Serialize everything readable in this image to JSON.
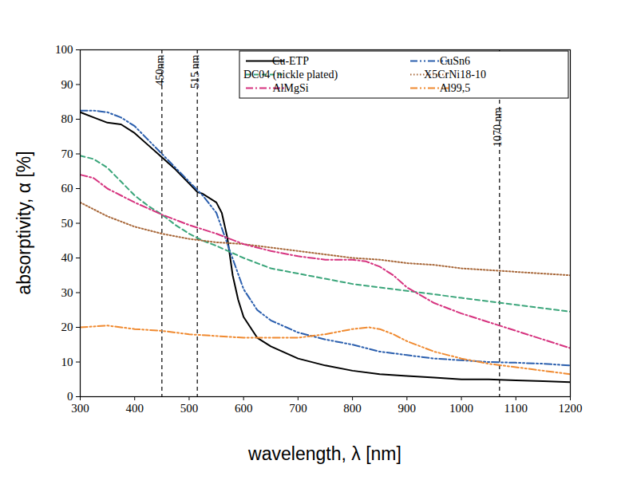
{
  "chart_data": {
    "type": "line",
    "x_label": "wavelength, λ [nm]",
    "y_label": "absorptivity, α [%]",
    "xlim": [
      300,
      1200
    ],
    "ylim": [
      0,
      100
    ],
    "xticks": [
      300,
      400,
      500,
      600,
      700,
      800,
      900,
      1000,
      1100,
      1200
    ],
    "yticks": [
      0,
      10,
      20,
      30,
      40,
      50,
      60,
      70,
      80,
      90,
      100
    ],
    "grid": false,
    "legend": "top-right",
    "series": [
      {
        "name": "Cu-ETP",
        "color": "#000000",
        "line_style": "solid",
        "x": [
          300,
          325,
          350,
          375,
          400,
          425,
          450,
          475,
          500,
          515,
          525,
          550,
          560,
          570,
          580,
          590,
          600,
          625,
          650,
          700,
          750,
          800,
          850,
          900,
          950,
          1000,
          1050,
          1100,
          1150,
          1200
        ],
        "values": [
          82,
          80.5,
          79,
          78.5,
          76,
          72.5,
          69,
          65.5,
          61.5,
          59,
          58.5,
          56,
          53,
          46,
          35,
          28,
          23,
          17,
          14.5,
          11,
          9,
          7.5,
          6.5,
          6,
          5.5,
          5,
          5,
          4.7,
          4.5,
          4.2
        ]
      },
      {
        "name": "CuSn6",
        "color": "#2b5fae",
        "line_style": "dashdotdot",
        "x": [
          300,
          325,
          350,
          375,
          400,
          425,
          450,
          475,
          500,
          525,
          550,
          575,
          600,
          625,
          650,
          700,
          750,
          800,
          850,
          900,
          950,
          1000,
          1050,
          1100,
          1150,
          1200
        ],
        "values": [
          82.5,
          82.5,
          82,
          80.5,
          78,
          74,
          70,
          66,
          62,
          58,
          53,
          42,
          31,
          25,
          22,
          18.5,
          16.5,
          15,
          13,
          12,
          11,
          10.5,
          10,
          9.8,
          9.5,
          9
        ]
      },
      {
        "name": "DC04 (nickle plated)",
        "color": "#3aa57a",
        "line_style": "dashed",
        "x": [
          300,
          325,
          350,
          375,
          400,
          425,
          450,
          475,
          500,
          525,
          550,
          600,
          650,
          700,
          750,
          800,
          850,
          900,
          950,
          1000,
          1050,
          1100,
          1150,
          1200
        ],
        "values": [
          69.5,
          68.5,
          66,
          62,
          58,
          55,
          52.5,
          49.5,
          47,
          45,
          43.5,
          40,
          37,
          35.5,
          34,
          32.5,
          31.5,
          30.5,
          29.5,
          28.5,
          27.5,
          26.5,
          25.5,
          24.5
        ]
      },
      {
        "name": "X5CrNi18-10",
        "color": "#a8683a",
        "line_style": "dotted",
        "x": [
          300,
          350,
          400,
          450,
          500,
          550,
          600,
          650,
          700,
          750,
          800,
          850,
          900,
          950,
          1000,
          1050,
          1100,
          1150,
          1200
        ],
        "values": [
          56,
          52,
          49,
          47,
          45.5,
          44.5,
          44,
          43,
          42,
          41,
          40,
          39.5,
          38.5,
          38,
          37,
          36.5,
          36,
          35.5,
          35
        ]
      },
      {
        "name": "AlMgSi",
        "color": "#d6337f",
        "line_style": "dashdot",
        "x": [
          300,
          325,
          350,
          400,
          450,
          500,
          550,
          600,
          650,
          700,
          750,
          800,
          825,
          850,
          875,
          900,
          950,
          1000,
          1050,
          1100,
          1150,
          1200
        ],
        "values": [
          64,
          63,
          60,
          56,
          52.5,
          49.5,
          47,
          44,
          42,
          40.5,
          39.5,
          39.5,
          39,
          37.5,
          35,
          31.5,
          27,
          24,
          21.5,
          19,
          16.5,
          14
        ]
      },
      {
        "name": "Al99,5",
        "color": "#f08a30",
        "line_style": "dashdotdot",
        "x": [
          300,
          350,
          400,
          450,
          500,
          550,
          600,
          650,
          700,
          750,
          800,
          830,
          850,
          875,
          900,
          950,
          1000,
          1050,
          1100,
          1150,
          1200
        ],
        "values": [
          20,
          20.5,
          19.5,
          19,
          18,
          17.5,
          17,
          17,
          17,
          18,
          19.5,
          20,
          19.5,
          18,
          16,
          13,
          11,
          9.5,
          8.5,
          7.5,
          6.5
        ]
      }
    ],
    "annotations": [
      {
        "x": 450,
        "label": "450nm"
      },
      {
        "x": 515,
        "label": "515 nm"
      },
      {
        "x": 1070,
        "label": "1070 nm"
      }
    ]
  }
}
